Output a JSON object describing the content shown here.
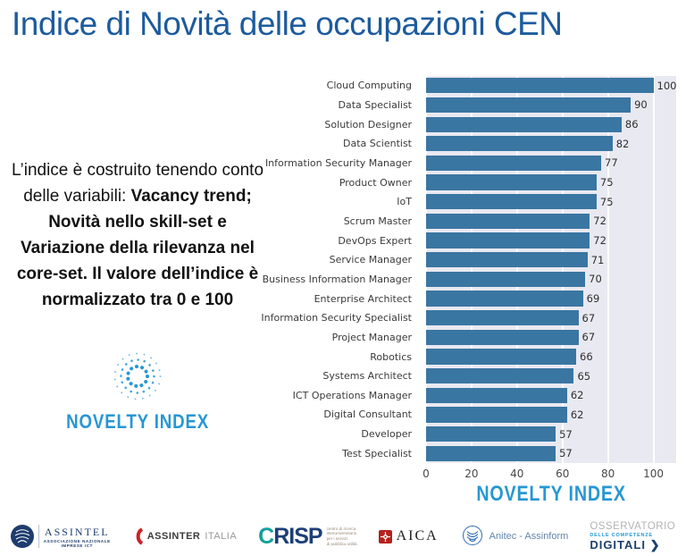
{
  "header": {
    "title": "Indice di Novità delle occupazioni CEN"
  },
  "description": {
    "intro": "L’indice è costruito tenendo conto delle variabili: ",
    "emphasis": "Vacancy trend; Novità nello skill-set e Variazione della rilevanza nel core-set. Il valore dell’indice è normalizzato tra 0 e 100"
  },
  "novelty_logo": {
    "label": "NOVELTY INDEX",
    "icon": "dotted-circle-burst"
  },
  "chart_data": {
    "type": "bar",
    "orientation": "horizontal",
    "title": "Indice di Novità delle occupazioni CEN",
    "categories": [
      "Cloud Computing",
      "Data Specialist",
      "Solution Designer",
      "Data Scientist",
      "Information Security Manager",
      "Product Owner",
      "IoT",
      "Scrum Master",
      "DevOps Expert",
      "Service Manager",
      "Business Information Manager",
      "Enterprise Architect",
      "Information Security Specialist",
      "Project Manager",
      "Robotics",
      "Systems Architect",
      "ICT Operations Manager",
      "Digital Consultant",
      "Developer",
      "Test Specialist"
    ],
    "values": [
      100,
      90,
      86,
      82,
      77,
      75,
      75,
      72,
      72,
      71,
      70,
      69,
      67,
      67,
      66,
      65,
      62,
      62,
      57,
      57
    ],
    "xlabel": "NOVELTY INDEX",
    "ylabel": "",
    "xticks": [
      0,
      20,
      40,
      60,
      80,
      100
    ],
    "xlim": [
      0,
      110
    ],
    "grid": true,
    "value_labels": true,
    "legend": "none",
    "bar_color": "#3a76a2",
    "plot_bg": "#e9e9f1"
  },
  "footer": {
    "assintel": {
      "name": "ASSINTEL",
      "subtitle1": "ASSOCIAZIONE NAZIONALE",
      "subtitle2": "IMPRESE ICT"
    },
    "assinter": {
      "name": "ASSINTER",
      "suffix": "ITALIA"
    },
    "crisp": {
      "initial": "C",
      "rest": "RISP",
      "tagline1": "centro di ricerca",
      "tagline2": "interuniversitario",
      "tagline3": "per i servizi",
      "tagline4": "di pubblica utilità"
    },
    "aica": {
      "name": "AICA"
    },
    "anitec": {
      "name": "Anitec - Assinform"
    },
    "osservatorio": {
      "line1": "OSSERVATORIO",
      "line2": "DELLE COMPETENZE",
      "line3": "DIGITALI ❯"
    }
  },
  "colors": {
    "title_blue": "#1d5b9d",
    "accent_blue": "#2797d3",
    "bar_blue": "#3a76a2",
    "plot_background": "#e9e9f1",
    "crisp_teal": "#14a09a",
    "crisp_navy": "#1d3f77",
    "aica_red": "#b5211e",
    "assinter_red": "#cc2127"
  }
}
